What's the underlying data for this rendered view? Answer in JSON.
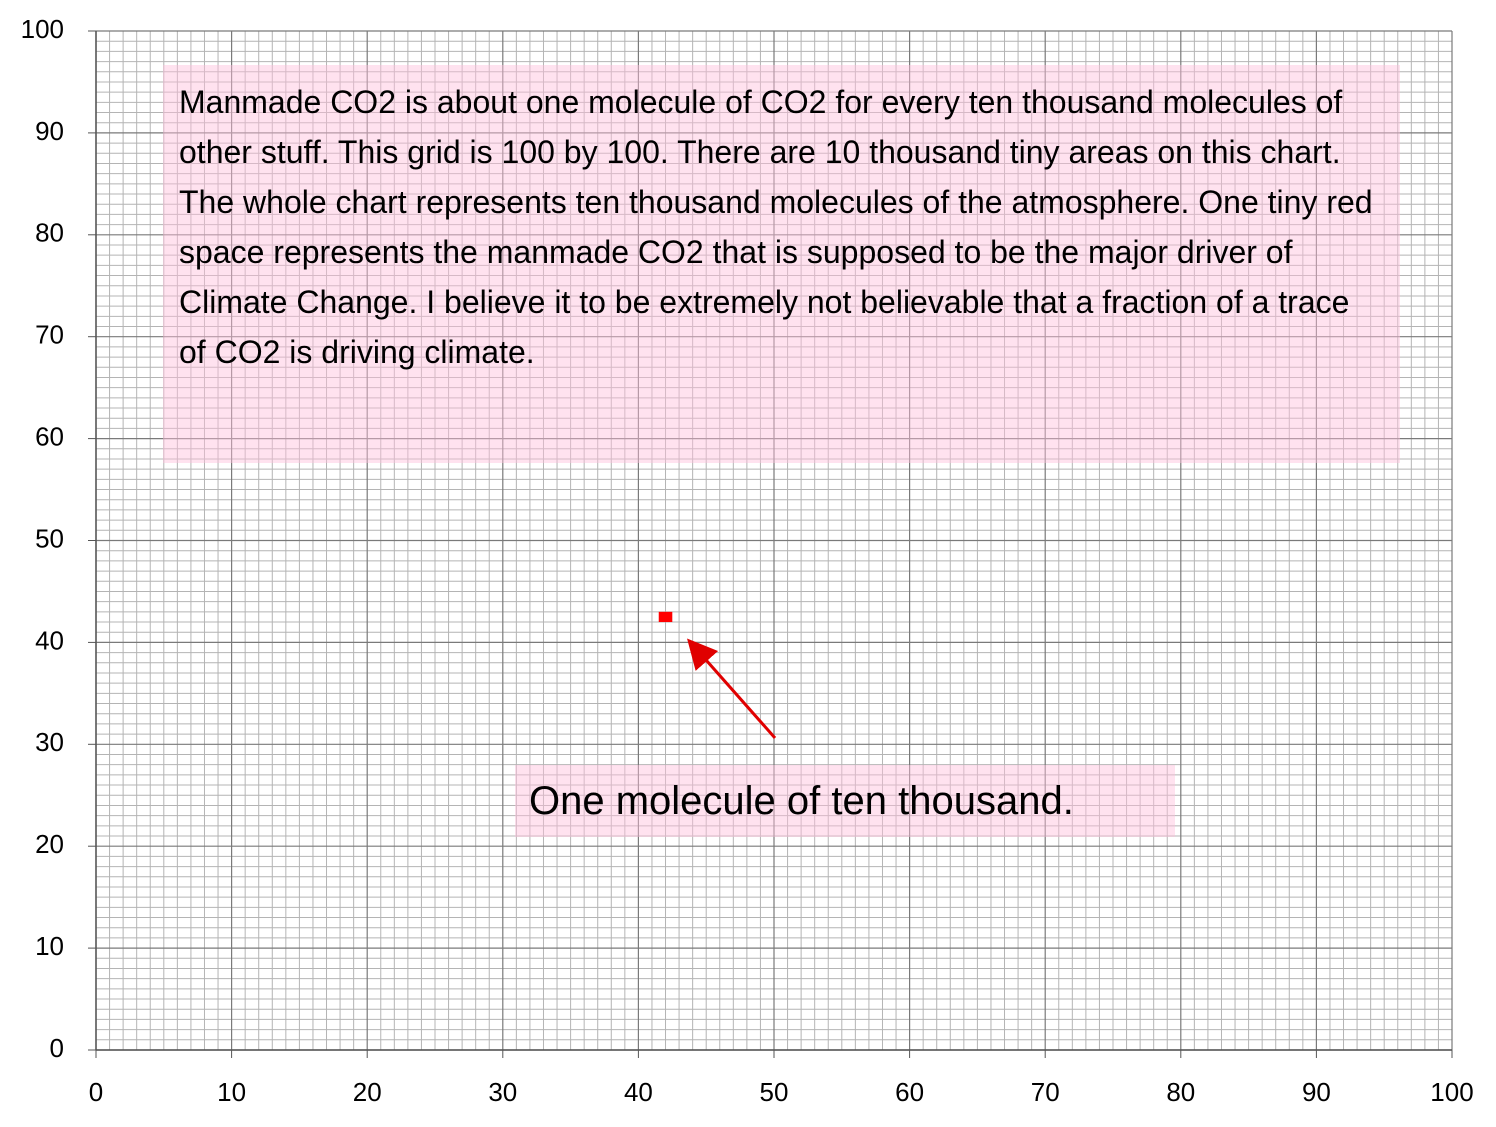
{
  "chart_data": {
    "type": "scatter",
    "series": [
      {
        "color": "#ff0000",
        "x": [
          42
        ],
        "values": [
          42.5
        ]
      }
    ],
    "xlim": [
      0,
      100
    ],
    "xticks": [
      0,
      10,
      20,
      30,
      40,
      50,
      60,
      70,
      80,
      90,
      100
    ],
    "ylim": [
      0,
      100
    ],
    "yticks": [
      0,
      10,
      20,
      30,
      40,
      50,
      60,
      70,
      80,
      90,
      100
    ],
    "grid": true,
    "minor_grid": true,
    "annotations": [
      "Manmade CO2 is about one molecule of CO2 for every ten thousand molecules of other stuff.  This grid is 100 by 100.  There are 10 thousand tiny areas on this chart.  The whole chart represents ten thousand molecules of the atmosphere.  One tiny red space represents the manmade CO2 that is supposed to be the major driver of Climate Change. I believe it to be extremely not believable that a fraction of a trace of CO2 is driving climate.",
      "One molecule of ten thousand."
    ]
  }
}
